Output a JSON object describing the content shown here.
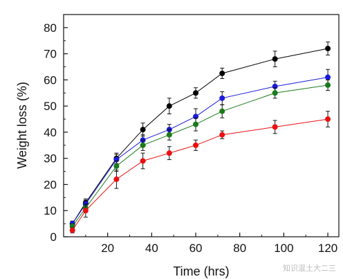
{
  "chart_data": {
    "type": "line",
    "title": "",
    "xlabel": "Time (hrs)",
    "ylabel": "Weight loss (%)",
    "xlim": [
      0,
      125
    ],
    "ylim": [
      0,
      85
    ],
    "x_ticks": [
      20,
      40,
      60,
      80,
      100,
      120
    ],
    "y_ticks": [
      0,
      10,
      20,
      30,
      40,
      50,
      60,
      70,
      80
    ],
    "x_tick_labels": [
      "20",
      "40",
      "60",
      "80",
      "100",
      "120"
    ],
    "y_tick_labels": [
      "0",
      "10",
      "20",
      "30",
      "40",
      "50",
      "60",
      "70",
      "80"
    ],
    "grid": false,
    "legend": "none",
    "x": [
      4,
      10,
      24,
      36,
      48,
      60,
      72,
      96,
      120
    ],
    "series": [
      {
        "color": "#000000",
        "values": [
          5,
          13,
          30,
          41,
          50,
          55,
          62.5,
          68,
          72
        ],
        "errors": [
          1,
          1.5,
          2,
          2.5,
          3,
          2,
          2,
          3,
          2.5
        ]
      },
      {
        "color": "#1a1adc",
        "values": [
          5,
          12.5,
          29.5,
          37,
          41,
          46,
          53,
          57.5,
          61
        ],
        "errors": [
          1,
          1.5,
          2,
          2,
          2,
          3,
          2.5,
          2,
          3
        ]
      },
      {
        "color": "#1a7a1a",
        "values": [
          4,
          11,
          27,
          35,
          39,
          43,
          48,
          55,
          58
        ],
        "errors": [
          1,
          1.5,
          2,
          2,
          2,
          2.5,
          2.5,
          2,
          2
        ]
      },
      {
        "color": "#e81010",
        "values": [
          2.5,
          10,
          22,
          29,
          32,
          35,
          39,
          42,
          45
        ],
        "errors": [
          1,
          2.5,
          3.5,
          3,
          2.5,
          2,
          1.5,
          2.5,
          3
        ]
      }
    ]
  },
  "watermark": "知识混土大二三"
}
